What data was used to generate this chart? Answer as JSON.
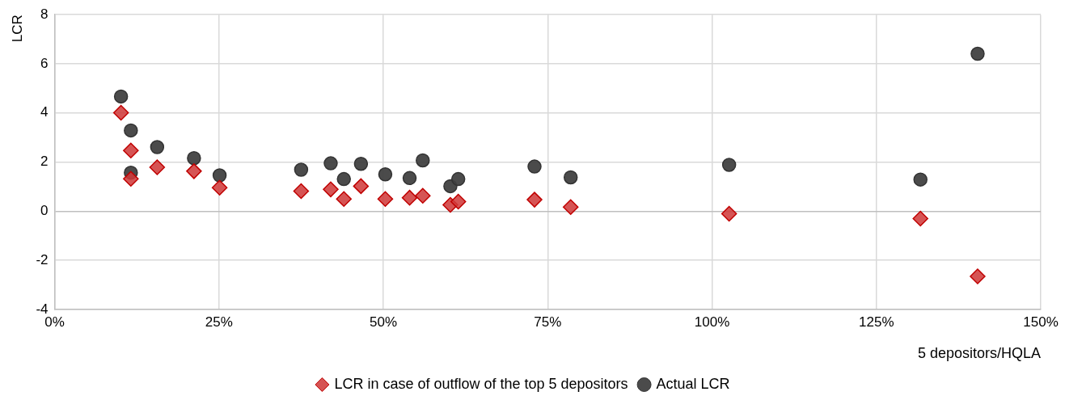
{
  "chart_data": {
    "type": "scatter",
    "xlabel": "5 depositors/HQLA",
    "ylabel": "LCR",
    "xlim": [
      0,
      150
    ],
    "xticks": [
      {
        "value": 0,
        "label": "0%"
      },
      {
        "value": 25,
        "label": "25%"
      },
      {
        "value": 50,
        "label": "50%"
      },
      {
        "value": 75,
        "label": "75%"
      },
      {
        "value": 100,
        "label": "100%"
      },
      {
        "value": 125,
        "label": "125%"
      },
      {
        "value": 150,
        "label": "150%"
      }
    ],
    "ylim": [
      -4,
      8
    ],
    "yticks": [
      -4,
      -2,
      0,
      2,
      4,
      6,
      8
    ],
    "grid": true,
    "legend": "bottom",
    "series": [
      {
        "name": "LCR in case of outflow of the top 5 depositors",
        "color": "#d03a3a",
        "marker": "diamond",
        "x": [
          10.1,
          11.6,
          11.6,
          15.6,
          21.2,
          25.1,
          37.5,
          42.0,
          44.0,
          46.6,
          50.3,
          54.0,
          56.0,
          60.2,
          61.4,
          73.0,
          78.5,
          102.6,
          131.7,
          140.4
        ],
        "values": [
          4.01,
          2.47,
          1.32,
          1.79,
          1.63,
          0.96,
          0.82,
          0.89,
          0.5,
          1.02,
          0.5,
          0.55,
          0.63,
          0.26,
          0.39,
          0.47,
          0.17,
          -0.1,
          -0.3,
          -2.65
        ]
      },
      {
        "name": "Actual LCR",
        "color": "#404040",
        "marker": "circle",
        "x": [
          10.1,
          11.6,
          11.6,
          15.6,
          21.2,
          25.1,
          37.5,
          42.0,
          44.0,
          46.6,
          50.3,
          54.0,
          56.0,
          60.2,
          61.4,
          73.0,
          78.5,
          102.6,
          131.7,
          140.4
        ],
        "values": [
          4.67,
          3.29,
          1.57,
          2.61,
          2.16,
          1.46,
          1.69,
          1.95,
          1.31,
          1.93,
          1.5,
          1.35,
          2.07,
          1.02,
          1.31,
          1.82,
          1.38,
          1.89,
          1.29,
          6.41
        ]
      }
    ]
  }
}
